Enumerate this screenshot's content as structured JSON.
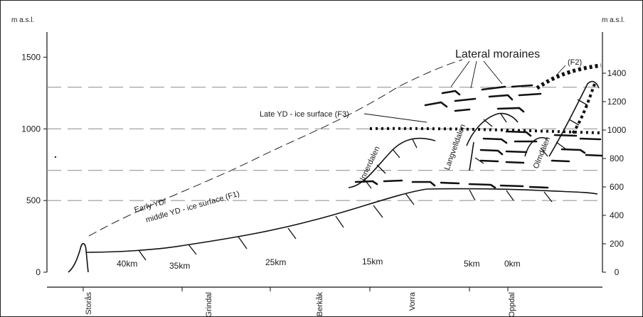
{
  "axes": {
    "left_unit": "m a.s.l.",
    "right_unit": "m a.s.l.",
    "left_ticks": [
      {
        "value": 0,
        "label": "0"
      },
      {
        "value": 500,
        "label": "500"
      },
      {
        "value": 1000,
        "label": "1000"
      },
      {
        "value": 1500,
        "label": "1500"
      }
    ],
    "right_ticks": [
      {
        "value": 0,
        "label": "0"
      },
      {
        "value": 200,
        "label": "200"
      },
      {
        "value": 400,
        "label": "400"
      },
      {
        "value": 600,
        "label": "600"
      },
      {
        "value": 800,
        "label": "800"
      },
      {
        "value": 1000,
        "label": "1000"
      },
      {
        "value": 1200,
        "label": "1200"
      },
      {
        "value": 1400,
        "label": "1400"
      }
    ],
    "reference_lines_m": [
      500,
      710,
      1000,
      1290
    ]
  },
  "distances": [
    "40km",
    "35km",
    "25km",
    "15km",
    "5km",
    "0km"
  ],
  "places": [
    "Storås",
    "Grindal",
    "Berkåk",
    "Vorra",
    "Oppdal"
  ],
  "labels": {
    "lateral_moraines": "Lateral moraines",
    "f2": "(F2)",
    "late_yd": "Late YD - ice surface (F3)",
    "early_yd_1": "Early YD/",
    "early_yd_2": "middle YD - ice surface (F1)",
    "innerdalen": "Innerdalen",
    "langvelldalen": "Langvelldalen",
    "olmdalen": "Olmdalen"
  }
}
